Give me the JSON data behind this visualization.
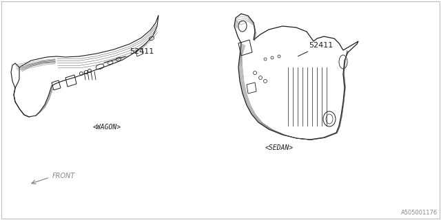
{
  "bg_color": "#ffffff",
  "line_color": "#1a1a1a",
  "detail_color": "#444444",
  "part_number": "52411",
  "wagon_label": "<WAGON>",
  "sedan_label": "<SEDAN>",
  "front_label": "FRONT",
  "diagram_id": "A505001176",
  "label_fontsize": 7,
  "diagram_fontsize": 6,
  "partnum_fontsize": 8
}
